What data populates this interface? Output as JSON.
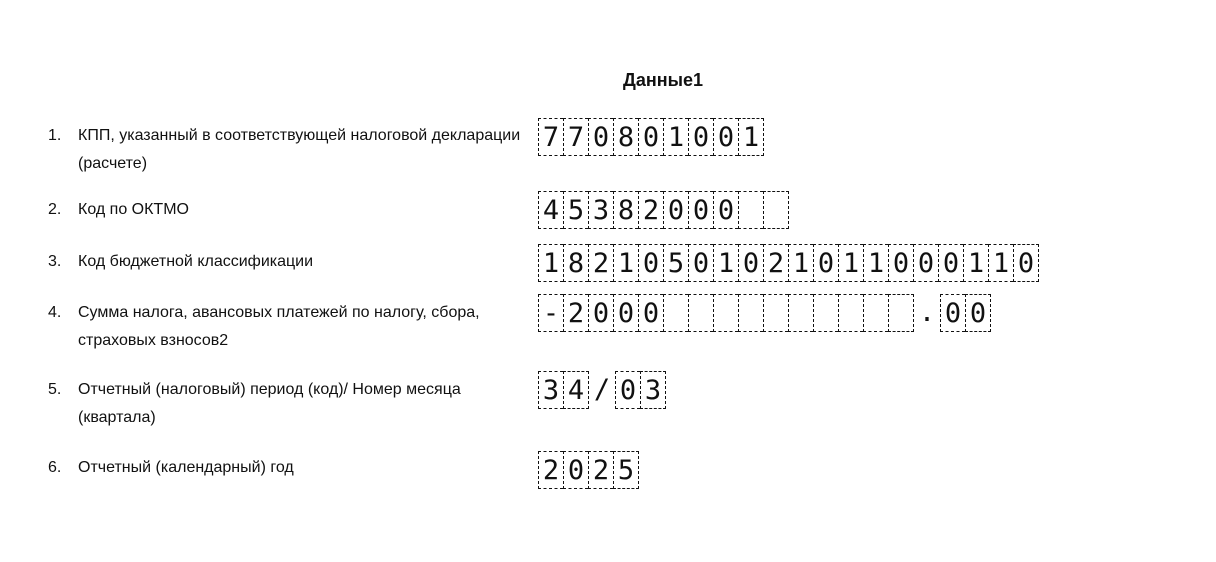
{
  "title": "Данные1",
  "rows": [
    {
      "num": "1.",
      "label": "КПП, указанный в соответствующей налоговой декларации (расчете)",
      "cells": [
        "7",
        "7",
        "0",
        "8",
        "0",
        "1",
        "0",
        "0",
        "1"
      ]
    },
    {
      "num": "2.",
      "label": "Код по ОКТМО",
      "cells": [
        "4",
        "5",
        "3",
        "8",
        "2",
        "0",
        "0",
        "0",
        "",
        ""
      ]
    },
    {
      "num": "3.",
      "label": "Код бюджетной классификации",
      "cells": [
        "1",
        "8",
        "2",
        "1",
        "0",
        "5",
        "0",
        "1",
        "0",
        "2",
        "1",
        "0",
        "1",
        "1",
        "0",
        "0",
        "0",
        "1",
        "1",
        "0"
      ]
    },
    {
      "num": "4.",
      "label": "Сумма налога, авансовых платежей по налогу, сбора, страховых взносов2",
      "cells": [
        "-",
        "2",
        "0",
        "0",
        "0",
        "",
        "",
        "",
        "",
        "",
        "",
        "",
        "",
        "",
        ""
      ],
      "separator": ".",
      "fraction": [
        "0",
        "0"
      ]
    },
    {
      "num": "5.",
      "label": "Отчетный (налоговый) период (код)/ Номер месяца (квартала)",
      "cells": [
        "3",
        "4"
      ],
      "separator": "/",
      "fraction": [
        "0",
        "3"
      ]
    },
    {
      "num": "6.",
      "label": "Отчетный (календарный) год",
      "cells": [
        "2",
        "0",
        "2",
        "5"
      ]
    }
  ]
}
